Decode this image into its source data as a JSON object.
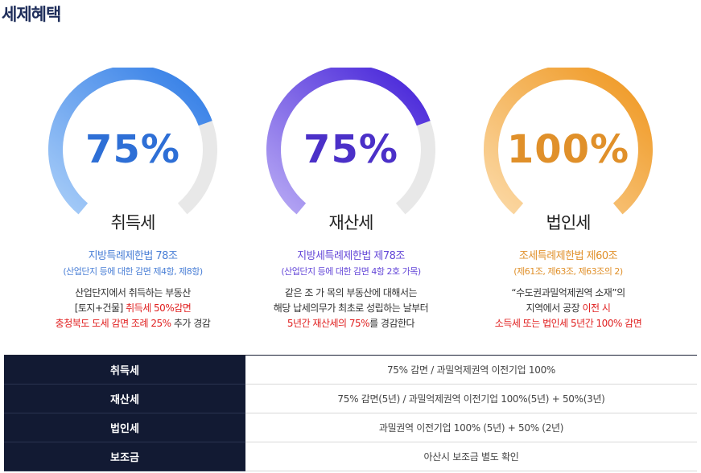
{
  "page": {
    "title": "세제혜택"
  },
  "cards": [
    {
      "percent": "75%",
      "tax": "취득세",
      "law": "지방특례제한법 78조",
      "sub": "(산업단지 등에 대한 감면 제4항, 제8항)",
      "desc": [
        [
          {
            "t": "산업단지에서 취득하는 부동산",
            "red": false
          }
        ],
        [
          {
            "t": "[토지+건물] ",
            "red": false
          },
          {
            "t": "취득세 50%감면",
            "red": true
          }
        ],
        [
          {
            "t": "충청북도 도세 감면 조례 25%",
            "red": true
          },
          {
            "t": " 추가 경감",
            "red": false
          }
        ]
      ],
      "gauge_fill": 0.75
    },
    {
      "percent": "75%",
      "tax": "재산세",
      "law": "지방세특례제한법 제78조",
      "sub": "(산업단지 등에 대한 감면 4항 2호 가목)",
      "desc": [
        [
          {
            "t": "같은 조 가 목의 부동산에 대해서는",
            "red": false
          }
        ],
        [
          {
            "t": "해당 납세의무가 최초로 성립하는 날부터",
            "red": false
          }
        ],
        [
          {
            "t": "5년간 재산세의 75%",
            "red": true
          },
          {
            "t": "를 경감한다",
            "red": false
          }
        ]
      ],
      "gauge_fill": 0.75
    },
    {
      "percent": "100%",
      "tax": "법인세",
      "law": "조세특례제한법 제60조",
      "sub": "(제61조, 제63조, 제63조의 2)",
      "desc": [
        [
          {
            "t": "“수도권과밀억제권역 소재”의",
            "red": false
          }
        ],
        [
          {
            "t": "지역에서 공장 ",
            "red": false
          },
          {
            "t": "이전 시",
            "red": true
          }
        ],
        [
          {
            "t": "소득세 또는 법인세 5년간 100% 감면",
            "red": true
          }
        ]
      ],
      "gauge_fill": 1.0
    }
  ],
  "colors": {
    "gauge1": [
      "#a8cdf8",
      "#2f7be6"
    ],
    "gauge2": [
      "#b7a9f4",
      "#4320d8"
    ],
    "gauge3": [
      "#fbd9a6",
      "#ef961e"
    ],
    "track": "#e8e8e8",
    "red": "#e02020"
  },
  "table": {
    "rows": [
      {
        "label": "취득세",
        "value": "75% 감면 / 과밀억제권역 이전기업 100%"
      },
      {
        "label": "재산세",
        "value": "75% 감면(5년) / 과밀억제권역 이전기업 100%(5년) + 50%(3년)"
      },
      {
        "label": "법인세",
        "value": "과밀권역 이전기업 100% (5년) + 50% (2년)"
      },
      {
        "label": "보조금",
        "value": "아산시 보조금 별도 확인"
      }
    ]
  }
}
